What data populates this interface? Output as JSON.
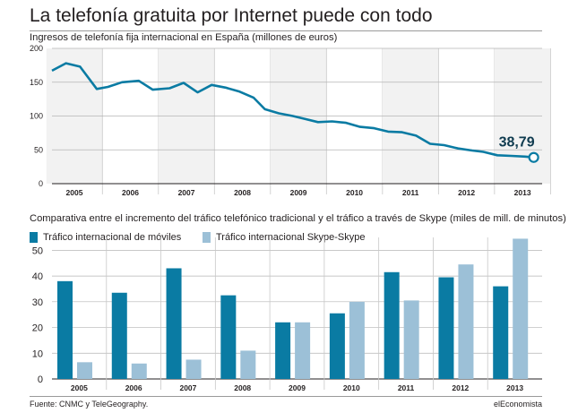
{
  "title": "La telefonía gratuita por Internet puede con todo",
  "footer": {
    "source": "Fuente: CNMC y TeleGeography.",
    "brand": "elEconomista"
  },
  "colors": {
    "dark": "#0a7ba3",
    "light": "#9cc0d7",
    "callout": "#0f3b4f"
  },
  "chart_data": [
    {
      "type": "line",
      "subtitle": "Ingresos de telefonía fija internacional en España (millones de euros)",
      "ylim": [
        0,
        200
      ],
      "yticks": [
        0,
        50,
        100,
        150,
        200
      ],
      "year_labels": [
        "2005",
        "2006",
        "2007",
        "2008",
        "2009",
        "2010",
        "2011",
        "2012",
        "2013"
      ],
      "grid": true,
      "callout": "38,79",
      "series": [
        {
          "x": [
            2004.6,
            2004.85,
            2005.1,
            2005.4,
            2005.6,
            2005.85,
            2006.15,
            2006.4,
            2006.7,
            2006.95,
            2007.2,
            2007.45,
            2007.7,
            2007.95,
            2008.2,
            2008.4,
            2008.65,
            2008.9,
            2009.1,
            2009.35,
            2009.6,
            2009.85,
            2010.1,
            2010.35,
            2010.6,
            2010.85,
            2011.1,
            2011.35,
            2011.6,
            2011.85,
            2012.1,
            2012.3,
            2012.55,
            2012.8,
            2013.05,
            2013.2
          ],
          "y": [
            167,
            178,
            173,
            140,
            143,
            150,
            152,
            139,
            141,
            149,
            135,
            146,
            142,
            136,
            127,
            110,
            104,
            100,
            96,
            91,
            92,
            90,
            84,
            82,
            77,
            76,
            71,
            59,
            57,
            52,
            49,
            47,
            42,
            41,
            40,
            38.79
          ]
        }
      ]
    },
    {
      "type": "bar",
      "subtitle": "Comparativa entre el incremento del tráfico telefónico tradicional y el tráfico a través de Skype (miles de mill. de minutos)",
      "categories": [
        "2005",
        "2006",
        "2007",
        "2008",
        "2009",
        "2010",
        "2011",
        "2012",
        "2013"
      ],
      "ylim": [
        0,
        55
      ],
      "yticks": [
        0,
        10,
        20,
        30,
        40,
        50
      ],
      "grid": true,
      "legend": "top-left",
      "series": [
        {
          "name": "Tráfico internacional de móviles",
          "values": [
            38,
            33.5,
            43,
            32.5,
            22,
            25.5,
            41.5,
            39.5,
            36
          ]
        },
        {
          "name": "Tráfico internacional Skype-Skype",
          "values": [
            6.5,
            6,
            7.5,
            11,
            22,
            30,
            30.5,
            44.5,
            54.5
          ]
        }
      ]
    }
  ]
}
